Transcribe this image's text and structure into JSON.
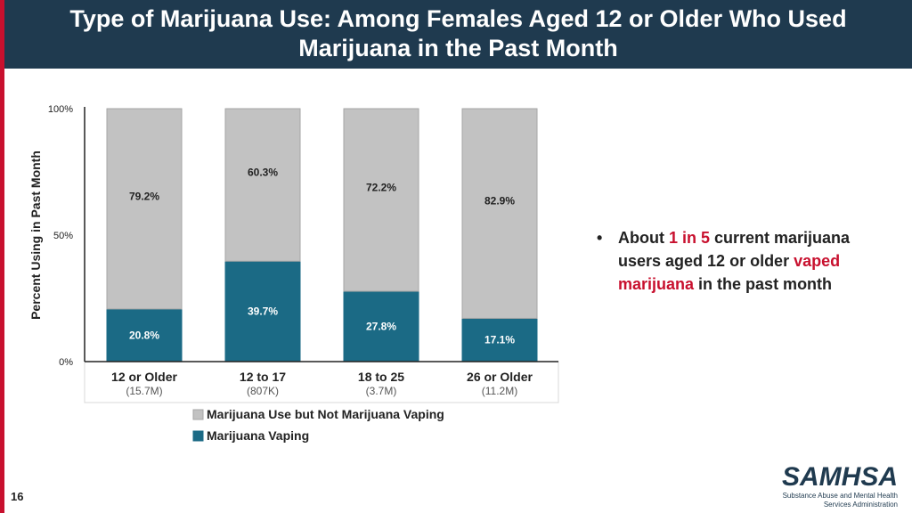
{
  "header": {
    "title_line1": "Type of Marijuana Use: Among Females Aged 12 or Older Who Used",
    "title_line2": "Marijuana in the Past Month"
  },
  "chart_data": {
    "type": "bar",
    "stacked": true,
    "title": "",
    "ylabel": "Percent Using in Past Month",
    "xlabel": "",
    "ylim": [
      0,
      100
    ],
    "yticks": [
      "0%",
      "50%",
      "100%"
    ],
    "categories": [
      "12 or Older",
      "12 to 17",
      "18 to 25",
      "26 or Older"
    ],
    "category_sublabels": [
      "(15.7M)",
      "(807K)",
      "(3.7M)",
      "(11.2M)"
    ],
    "series": [
      {
        "name": "Marijuana Vaping",
        "color": "#1b6a85",
        "values": [
          20.8,
          39.7,
          27.8,
          17.1
        ],
        "labels": [
          "20.8%",
          "39.7%",
          "27.8%",
          "17.1%"
        ]
      },
      {
        "name": "Marijuana Use but Not Marijuana Vaping",
        "color": "#c2c2c2",
        "values": [
          79.2,
          60.3,
          72.2,
          82.9
        ],
        "labels": [
          "79.2%",
          "60.3%",
          "72.2%",
          "82.9%"
        ]
      }
    ],
    "legend_entries": [
      "Marijuana Use but Not Marijuana Vaping",
      "Marijuana Vaping"
    ],
    "legend": "bottom",
    "grid": false
  },
  "bullet": {
    "dot": "•",
    "t1": "About ",
    "t2": "1 in 5",
    "t3": " current marijuana users aged 12 or older ",
    "t4": "vaped marijuana",
    "t5": " in the past month"
  },
  "footer": {
    "page_number": "16",
    "logo_text": "SAMHSA",
    "logo_sub1": "Substance Abuse and Mental Health",
    "logo_sub2": "Services Administration"
  },
  "colors": {
    "header_bg": "#1f3a4f",
    "accent_red": "#c8102e"
  }
}
